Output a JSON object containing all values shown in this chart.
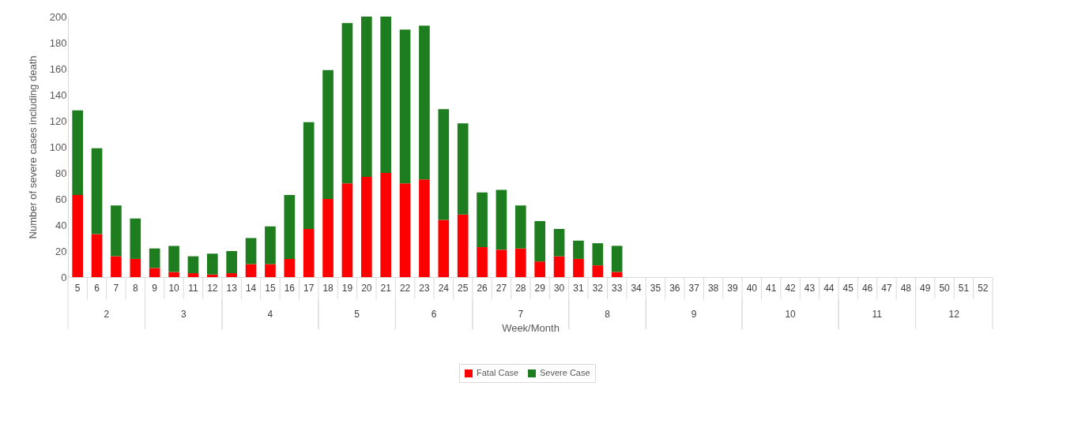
{
  "chart_data": {
    "type": "bar",
    "stacked": true,
    "xlabel": "Week/Month",
    "ylabel": "Number of severe cases including death",
    "categories": [
      "5",
      "6",
      "7",
      "8",
      "9",
      "10",
      "11",
      "12",
      "13",
      "14",
      "15",
      "16",
      "17",
      "18",
      "19",
      "20",
      "21",
      "22",
      "23",
      "24",
      "25",
      "26",
      "27",
      "28",
      "29",
      "30",
      "31",
      "32",
      "33",
      "34",
      "35",
      "36",
      "37",
      "38",
      "39",
      "40",
      "41",
      "42",
      "43",
      "44",
      "45",
      "46",
      "47",
      "48",
      "49",
      "50",
      "51",
      "52"
    ],
    "series": [
      {
        "name": "Fatal Case",
        "color": "#ff0000",
        "values": [
          63,
          33,
          16,
          14,
          7,
          4,
          3,
          2,
          3,
          10,
          10,
          14,
          37,
          60,
          72,
          77,
          80,
          72,
          75,
          44,
          48,
          23,
          21,
          22,
          12,
          16,
          14,
          9,
          4,
          null,
          null,
          null,
          null,
          null,
          null,
          null,
          null,
          null,
          null,
          null,
          null,
          null,
          null,
          null,
          null,
          null,
          null,
          null
        ]
      },
      {
        "name": "Severe Case",
        "color": "#1e7d1e",
        "values": [
          65,
          66,
          39,
          31,
          15,
          20,
          13,
          16,
          17,
          20,
          29,
          49,
          82,
          99,
          123,
          123,
          120,
          118,
          118,
          85,
          70,
          42,
          46,
          33,
          31,
          21,
          14,
          17,
          20,
          null,
          null,
          null,
          null,
          null,
          null,
          null,
          null,
          null,
          null,
          null,
          null,
          null,
          null,
          null,
          null,
          null,
          null,
          null
        ]
      }
    ],
    "annotations": [
      "2",
      "3",
      "4",
      "5",
      "6",
      "7",
      "8",
      "9",
      "10",
      "11",
      "12"
    ],
    "ylim": [
      0,
      200
    ],
    "yticks": [
      0,
      20,
      40,
      60,
      80,
      100,
      120,
      140,
      160,
      180,
      200
    ],
    "grid": false,
    "legend": "bottom"
  }
}
